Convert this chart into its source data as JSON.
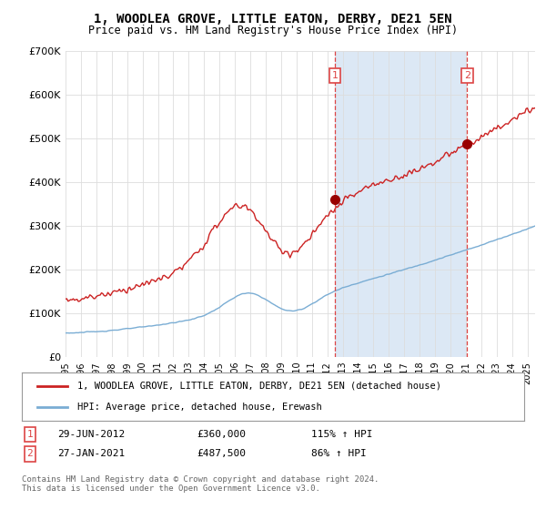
{
  "title": "1, WOODLEA GROVE, LITTLE EATON, DERBY, DE21 5EN",
  "subtitle": "Price paid vs. HM Land Registry's House Price Index (HPI)",
  "legend_line1": "1, WOODLEA GROVE, LITTLE EATON, DERBY, DE21 5EN (detached house)",
  "legend_line2": "HPI: Average price, detached house, Erewash",
  "footnote": "Contains HM Land Registry data © Crown copyright and database right 2024.\nThis data is licensed under the Open Government Licence v3.0.",
  "annotation1": {
    "label": "1",
    "date": "29-JUN-2012",
    "price": "£360,000",
    "hpi": "115% ↑ HPI"
  },
  "annotation2": {
    "label": "2",
    "date": "27-JAN-2021",
    "price": "£487,500",
    "hpi": "86% ↑ HPI"
  },
  "ylim": [
    0,
    700000
  ],
  "yticks": [
    0,
    100000,
    200000,
    300000,
    400000,
    500000,
    600000,
    700000
  ],
  "ytick_labels": [
    "£0",
    "£100K",
    "£200K",
    "£300K",
    "£400K",
    "£500K",
    "£600K",
    "£700K"
  ],
  "background_color": "#ffffff",
  "plot_bg_color": "#ffffff",
  "shade_color": "#dce8f5",
  "red_color": "#cc2222",
  "marker_color": "#990000",
  "blue_color": "#7aadd4",
  "vline_color": "#dd4444",
  "marker1_x": 2012.5,
  "marker1_y": 360000,
  "marker2_x": 2021.08,
  "marker2_y": 487500,
  "vline1_x": 2012.5,
  "vline2_x": 2021.08,
  "xmin": 1995,
  "xmax": 2025.5,
  "grid_color": "#dddddd"
}
